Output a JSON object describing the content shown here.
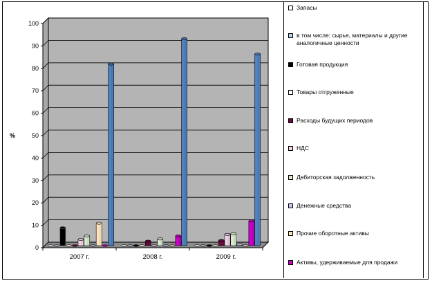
{
  "chart_data": {
    "type": "bar",
    "ylabel": "%",
    "ylim": [
      0,
      100
    ],
    "yticks": [
      "0",
      "10",
      "20",
      "30",
      "40",
      "50",
      "60",
      "70",
      "80",
      "90",
      "100"
    ],
    "categories": [
      "2007 г.",
      "2008 г.",
      "2009 г."
    ],
    "grid": true,
    "legend_position": "right",
    "series": [
      {
        "name": "Запасы",
        "color": "#ffffff",
        "values": [
          0,
          0,
          0
        ]
      },
      {
        "name": "в том числе: сырье, материалы и другие аналогичные ценности",
        "color": "#b8d4ee",
        "values": [
          0,
          0,
          0
        ]
      },
      {
        "name": "Готовая продукция",
        "color": "#000000",
        "values": [
          8.0,
          0,
          0
        ]
      },
      {
        "name": "Товары отгруженные",
        "color": "#ffffff",
        "values": [
          0,
          0,
          0
        ]
      },
      {
        "name": "Расходы будущих периодов",
        "color": "#6b0a3c",
        "values": [
          0,
          2.0,
          2.3
        ]
      },
      {
        "name": "НДС",
        "color": "#f3d2e6",
        "values": [
          2.8,
          0,
          5.0
        ]
      },
      {
        "name": "Дебиторская задолженность",
        "color": "#d9ead0",
        "values": [
          4.3,
          3.0,
          5.3
        ]
      },
      {
        "name": "Денежные средства",
        "color": "#c4c4ee",
        "values": [
          0,
          0,
          0.5
        ]
      },
      {
        "name": "Прочие оборотные активы",
        "color": "#fde4c0",
        "values": [
          10.0,
          0,
          0
        ]
      },
      {
        "name": "Активы, удерживаемые для продажи",
        "color": "#cc00cc",
        "values": [
          0,
          4.3,
          11.0
        ]
      },
      {
        "name": "",
        "color": "#4f81bd",
        "values": [
          81.0,
          92.3,
          85.5
        ]
      }
    ]
  }
}
